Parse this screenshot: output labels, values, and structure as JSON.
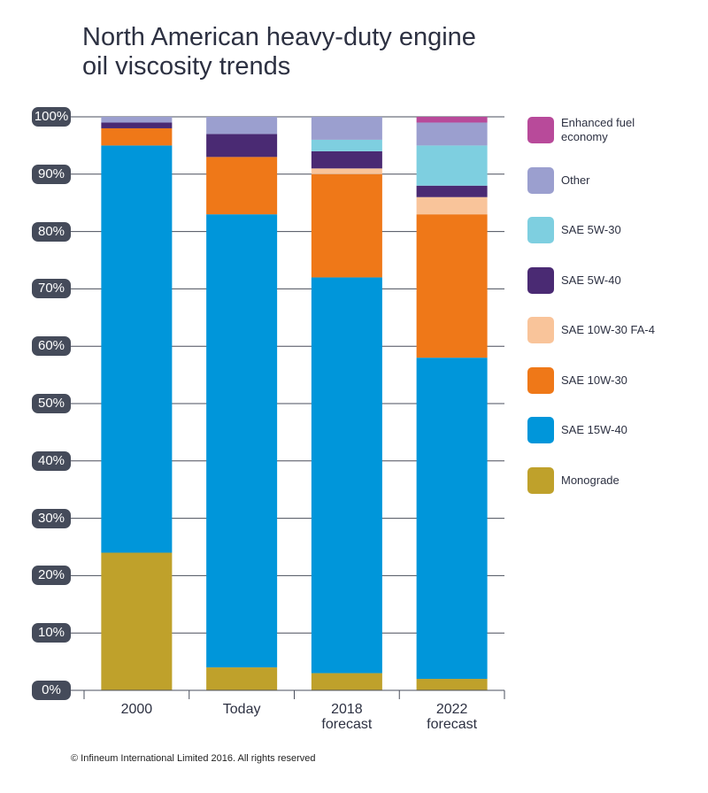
{
  "chart_data": {
    "type": "stacked-bar",
    "title": "North American heavy-duty engine oil viscosity trends",
    "categories": [
      "2000",
      "Today",
      "2018 forecast",
      "2022 forecast"
    ],
    "series": [
      {
        "name": "Monograde",
        "color": "#bfa12b",
        "values": [
          24,
          4,
          3,
          2
        ]
      },
      {
        "name": "SAE 15W-40",
        "color": "#0096da",
        "values": [
          71,
          79,
          69,
          56
        ]
      },
      {
        "name": "SAE 10W-30",
        "color": "#ef7818",
        "values": [
          3,
          10,
          18,
          25
        ]
      },
      {
        "name": "SAE 10W-30 FA-4",
        "color": "#f9c49a",
        "values": [
          0,
          0,
          1,
          3
        ]
      },
      {
        "name": "SAE 5W-40",
        "color": "#4a2a73",
        "values": [
          1,
          4,
          3,
          2
        ]
      },
      {
        "name": "SAE 5W-30",
        "color": "#7ecfe0",
        "values": [
          0,
          0,
          2,
          7
        ]
      },
      {
        "name": "Other",
        "color": "#9b9fcf",
        "values": [
          1,
          3,
          4,
          4
        ]
      },
      {
        "name": "Enhanced fuel economy",
        "color": "#b84a9a",
        "values": [
          0,
          0,
          0,
          1
        ]
      }
    ],
    "ylim": [
      0,
      100
    ],
    "yticks": [
      {
        "value": 0,
        "label": "0%"
      },
      {
        "value": 10,
        "label": "10%"
      },
      {
        "value": 20,
        "label": "20%"
      },
      {
        "value": 30,
        "label": "30%"
      },
      {
        "value": 40,
        "label": "40%"
      },
      {
        "value": 50,
        "label": "50%"
      },
      {
        "value": 60,
        "label": "60%"
      },
      {
        "value": 70,
        "label": "70%"
      },
      {
        "value": 80,
        "label": "80%"
      },
      {
        "value": 90,
        "label": "90%"
      },
      {
        "value": 100,
        "label": "100%"
      }
    ],
    "grid": true,
    "footnote": "© Infineum International Limited 2016. All rights reserved"
  }
}
